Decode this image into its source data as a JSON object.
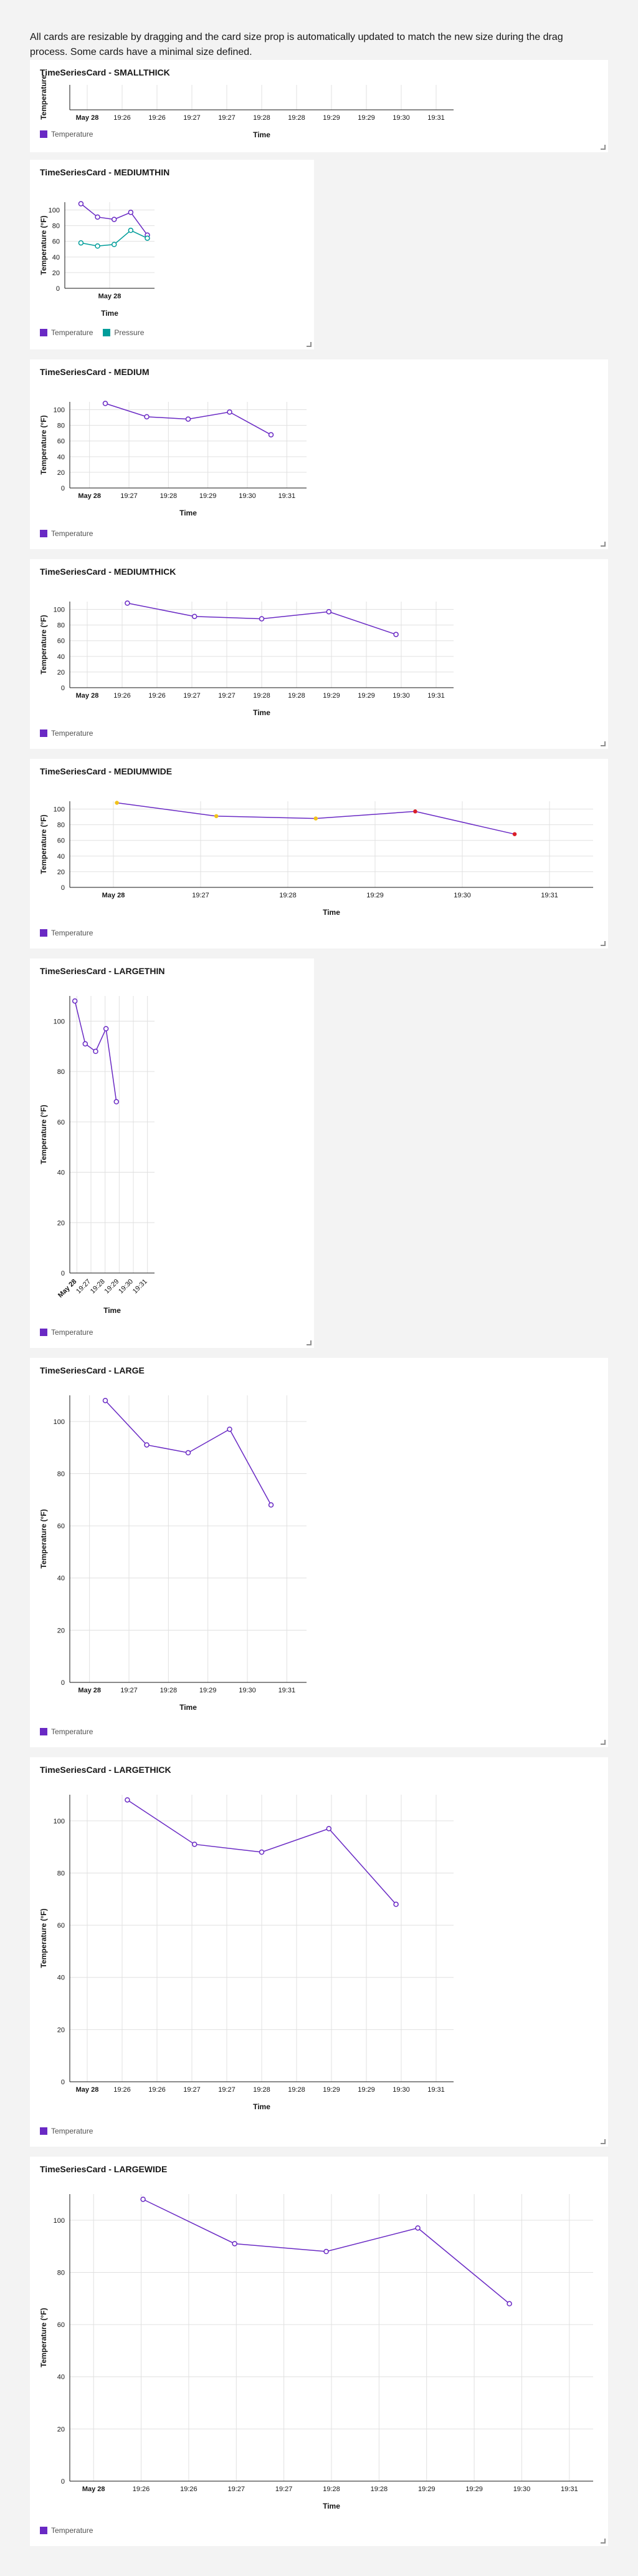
{
  "intro_text": "All cards are resizable by dragging and the card size prop is automatically updated to match the new size during the drag process. Some cards have a minimal size defined.",
  "colors": {
    "temperature": "#6929c4",
    "pressure": "#1192e8",
    "pressure_teal": "#009d9a",
    "grid": "#e0e0e0",
    "alert_yellow": "#f1c21b",
    "alert_red": "#da1e28"
  },
  "legend": {
    "temperature": "Temperature",
    "pressure": "Pressure"
  },
  "axes": {
    "xlabel": "Time",
    "ylabel": "Temperature (°F)",
    "ylabel_small": "Temperature"
  },
  "cards": [
    {
      "id": "smallthick",
      "title": "TimeSeriesCard - SMALLTHICK",
      "ticks_x": [
        "May 28",
        "19:26",
        "19:26",
        "19:27",
        "19:27",
        "19:28",
        "19:28",
        "19:29",
        "19:29",
        "19:30",
        "19:31"
      ],
      "ticks_y": []
    },
    {
      "id": "mediumthin",
      "title": "TimeSeriesCard - MEDIUMTHIN",
      "ticks_x": [
        "May 28"
      ],
      "ticks_y": [
        "0",
        "20",
        "40",
        "60",
        "80",
        "100"
      ]
    },
    {
      "id": "medium",
      "title": "TimeSeriesCard - MEDIUM",
      "ticks_x": [
        "May 28",
        "19:27",
        "19:28",
        "19:29",
        "19:30",
        "19:31"
      ],
      "ticks_y": [
        "0",
        "20",
        "40",
        "60",
        "80",
        "100"
      ]
    },
    {
      "id": "mediumthick",
      "title": "TimeSeriesCard - MEDIUMTHICK",
      "ticks_x": [
        "May 28",
        "19:26",
        "19:26",
        "19:27",
        "19:27",
        "19:28",
        "19:28",
        "19:29",
        "19:29",
        "19:30",
        "19:31"
      ],
      "ticks_y": [
        "0",
        "20",
        "40",
        "60",
        "80",
        "100"
      ]
    },
    {
      "id": "mediumwide",
      "title": "TimeSeriesCard - MEDIUMWIDE",
      "ticks_x": [
        "May 28",
        "19:27",
        "19:28",
        "19:29",
        "19:30",
        "19:31"
      ],
      "ticks_y": [
        "0",
        "20",
        "40",
        "60",
        "80",
        "100"
      ]
    },
    {
      "id": "largethin",
      "title": "TimeSeriesCard - LARGETHIN",
      "ticks_x": [
        "May 28",
        "19:27",
        "19:28",
        "19:29",
        "19:30",
        "19:31"
      ],
      "ticks_y": [
        "0",
        "20",
        "40",
        "60",
        "80",
        "100"
      ]
    },
    {
      "id": "large",
      "title": "TimeSeriesCard - LARGE",
      "ticks_x": [
        "May 28",
        "19:27",
        "19:28",
        "19:29",
        "19:30",
        "19:31"
      ],
      "ticks_y": [
        "0",
        "20",
        "40",
        "60",
        "80",
        "100"
      ]
    },
    {
      "id": "largethick",
      "title": "TimeSeriesCard - LARGETHICK",
      "ticks_x": [
        "May 28",
        "19:26",
        "19:26",
        "19:27",
        "19:27",
        "19:28",
        "19:28",
        "19:29",
        "19:29",
        "19:30",
        "19:31"
      ],
      "ticks_y": [
        "0",
        "20",
        "40",
        "60",
        "80",
        "100"
      ]
    },
    {
      "id": "largewide",
      "title": "TimeSeriesCard - LARGEWIDE",
      "ticks_x": [
        "May 28",
        "19:26",
        "19:26",
        "19:27",
        "19:27",
        "19:28",
        "19:28",
        "19:29",
        "19:29",
        "19:30",
        "19:31"
      ],
      "ticks_y": [
        "0",
        "20",
        "40",
        "60",
        "80",
        "100"
      ]
    }
  ],
  "chart_data": {
    "type": "line",
    "x": [
      "19:26:20",
      "19:27:20",
      "19:28:20",
      "19:29:20",
      "19:30:20"
    ],
    "series": [
      {
        "name": "Temperature",
        "values": [
          108,
          91,
          88,
          97,
          68
        ]
      },
      {
        "name": "Pressure",
        "values": [
          58,
          54,
          56,
          74,
          64
        ]
      }
    ],
    "ylim": [
      0,
      110
    ],
    "xlabel": "Time",
    "ylabel": "Temperature (°F)"
  }
}
